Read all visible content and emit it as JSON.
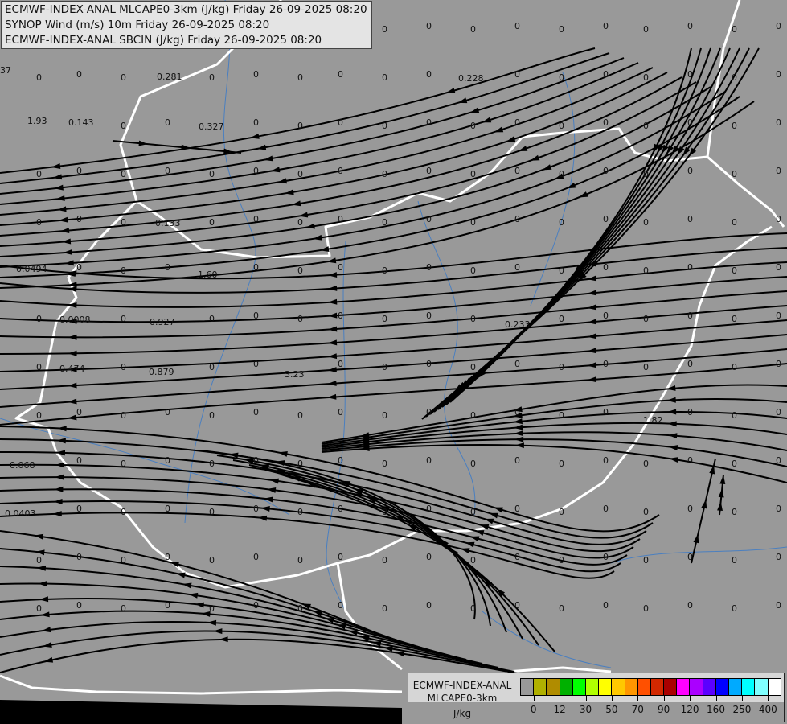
{
  "header": {
    "lines": [
      "ECMWF-INDEX-ANAL MLCAPE0-3km (J/kg) Friday 26-09-2025 08:20",
      "SYNOP Wind (m/s) 10m Friday 26-09-2025 08:20",
      "ECMWF-INDEX-ANAL SBCIN (J/kg) Friday 26-09-2025 08:20"
    ]
  },
  "map": {
    "background_color": "#999999",
    "border_color": "#ffffff",
    "river_color": "#4a7fc0",
    "streamline_color": "#000000",
    "zero_label": "0",
    "station_values": [
      "37",
      "0.281",
      "1.93",
      "0.143",
      "0.327",
      "0.228",
      "0.133",
      "0.0494",
      "1.60",
      "0.0008",
      "0.927",
      "0.233",
      "0.474",
      "0.879",
      "3.23",
      "1.82",
      "0.068",
      "0.0403"
    ]
  },
  "legend": {
    "product": "ECMWF-INDEX-ANAL",
    "parameter": "MLCAPE0-3km",
    "unit": "J/kg",
    "colors": [
      "#999999",
      "#b0b000",
      "#b08c00",
      "#00b000",
      "#00ff00",
      "#b0ff00",
      "#ffff00",
      "#ffc800",
      "#ff9600",
      "#ff5000",
      "#d22800",
      "#aa0000",
      "#ff00ff",
      "#aa00ff",
      "#5a00ff",
      "#0000ff",
      "#00aaff",
      "#00ffff",
      "#80ffff",
      "#ffffff"
    ],
    "ticks": [
      "0",
      "12",
      "30",
      "50",
      "70",
      "90",
      "120",
      "160",
      "250",
      "400"
    ]
  }
}
